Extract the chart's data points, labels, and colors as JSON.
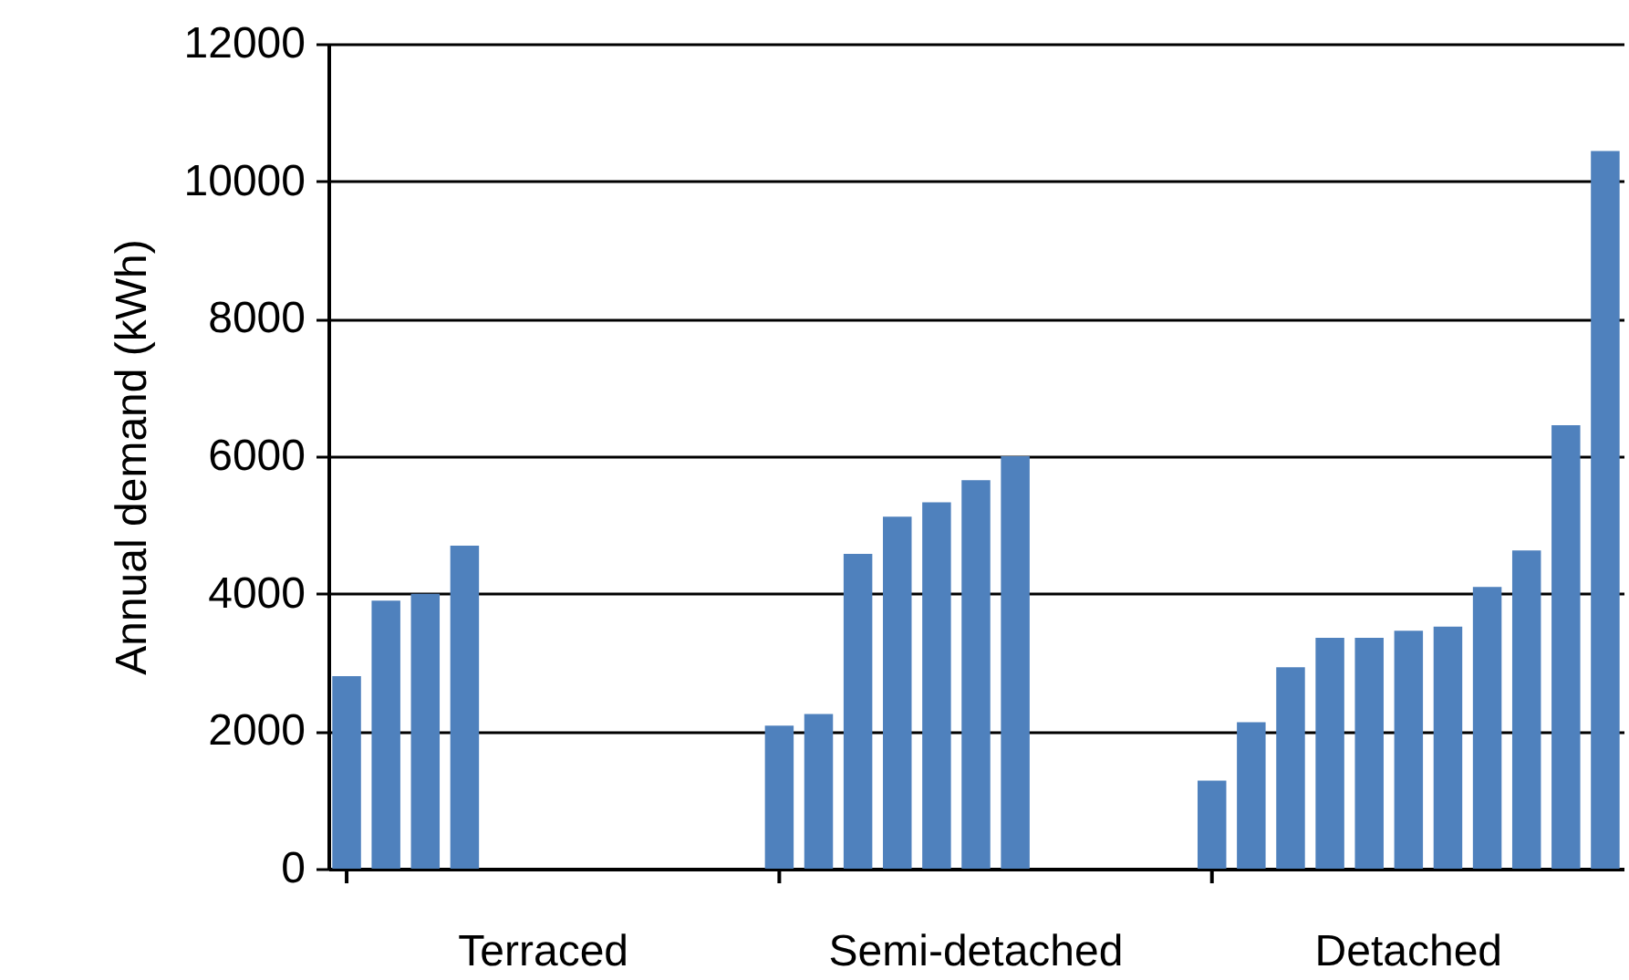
{
  "chart_data": {
    "type": "bar",
    "ylabel": "Annual demand (kWh)",
    "categories": [
      null,
      null,
      null,
      null,
      null,
      null,
      null,
      null,
      null,
      null,
      null,
      null,
      null,
      null,
      null,
      null,
      null,
      null,
      null,
      null,
      null,
      null,
      null,
      null,
      null,
      null,
      null,
      null,
      null,
      null,
      null,
      null,
      null
    ],
    "values": [
      2800,
      3900,
      4000,
      4700,
      null,
      null,
      null,
      null,
      null,
      null,
      null,
      2080,
      2250,
      4580,
      5120,
      5330,
      5650,
      6000,
      null,
      null,
      null,
      null,
      1280,
      2130,
      2930,
      3360,
      3360,
      3460,
      3520,
      4100,
      4630,
      6450,
      10440
    ],
    "color": "#4f81bd",
    "ylim": [
      0,
      12000
    ],
    "yticks": [
      0,
      2000,
      4000,
      6000,
      8000,
      10000,
      12000
    ],
    "grid": "y",
    "annotations": [
      "Terraced",
      "Semi-detached",
      "Detached"
    ]
  }
}
